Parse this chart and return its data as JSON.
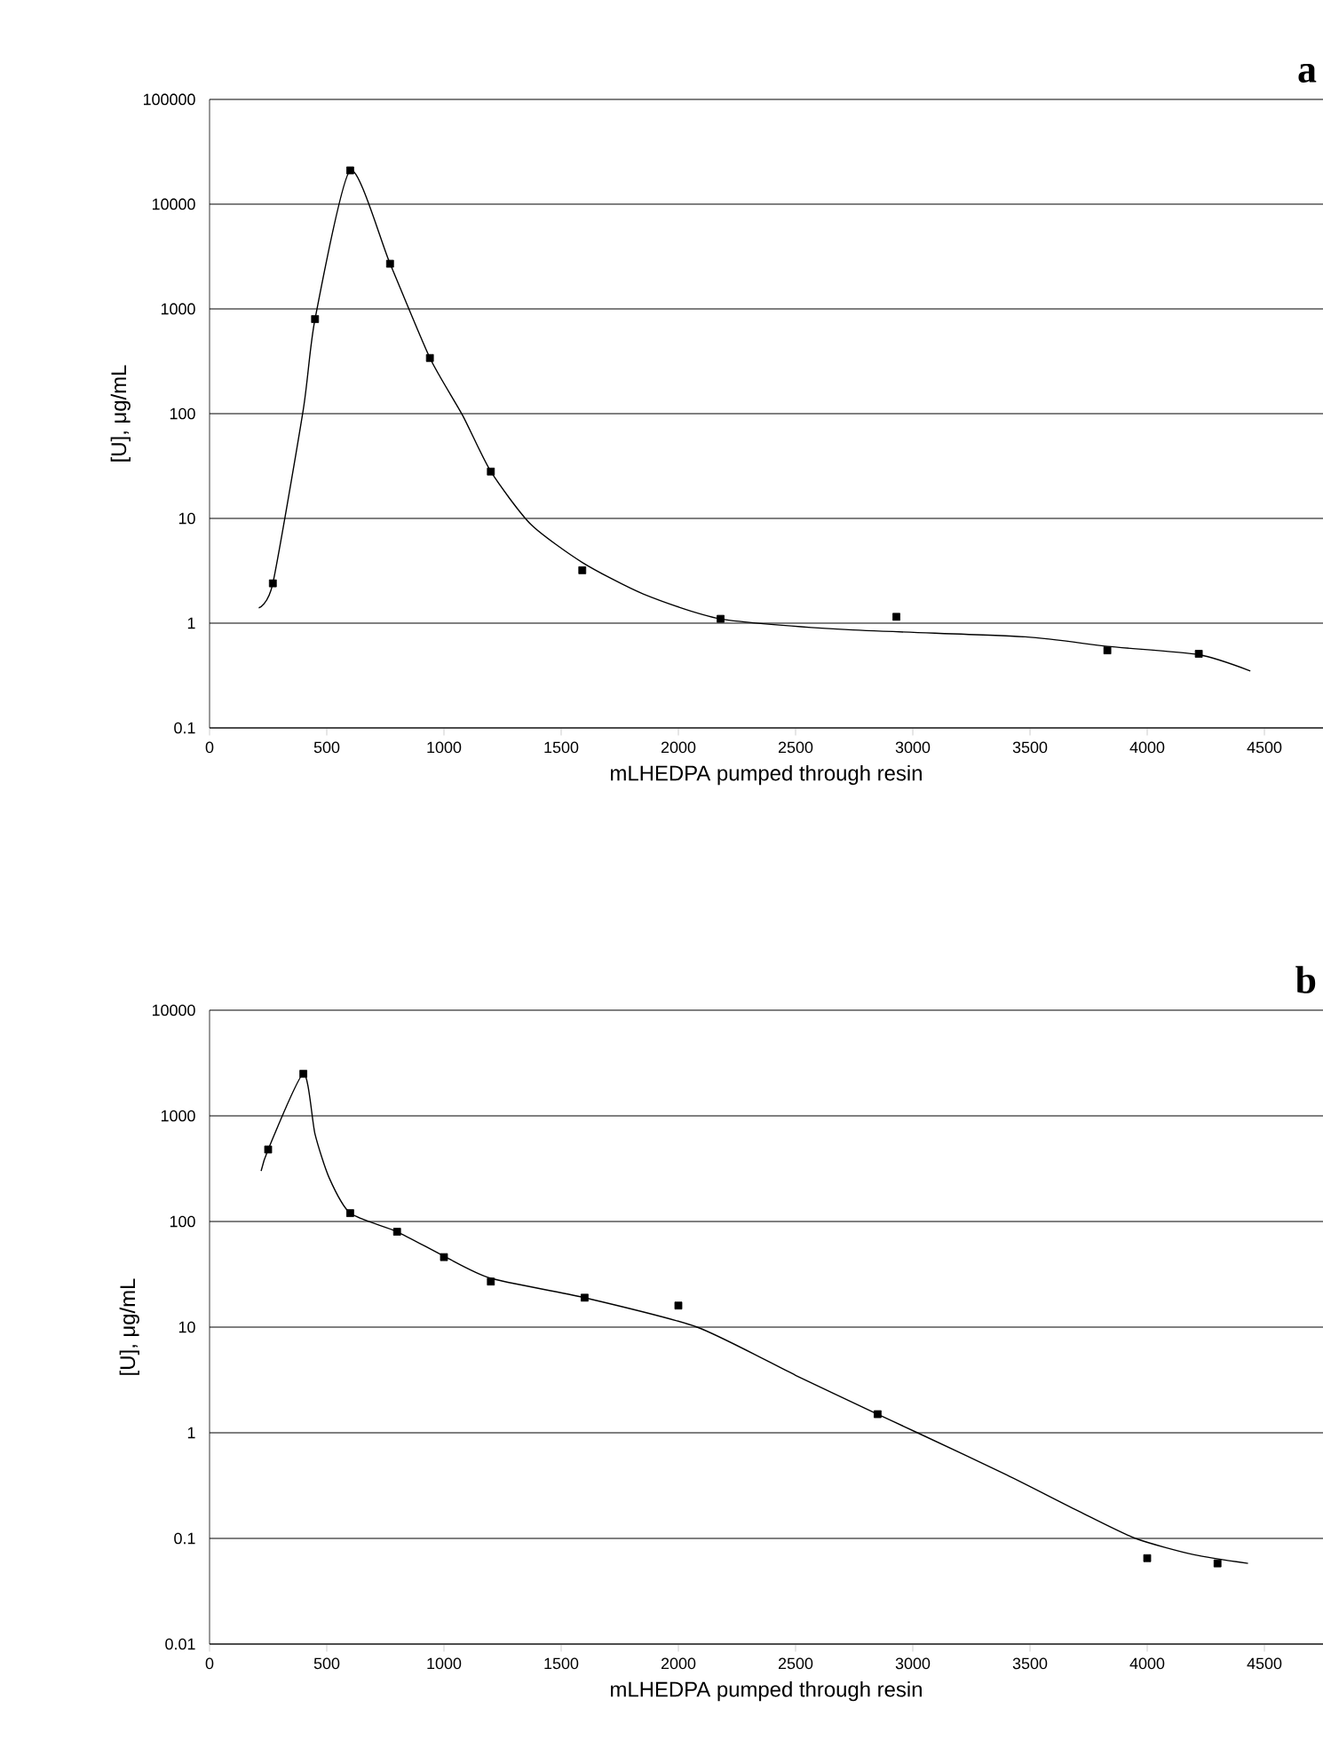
{
  "chart_data": [
    {
      "type": "scatter",
      "title": "a",
      "xlabel": "mLHEDPA pumped through resin",
      "ylabel": "[U], μg/mL",
      "log": "y",
      "grid": "y",
      "xlim": [
        0,
        4750
      ],
      "xticks": [
        0,
        500,
        1000,
        1500,
        2000,
        2500,
        3000,
        3500,
        4000,
        4500
      ],
      "ylim": [
        0.1,
        100000
      ],
      "yticks": [
        0.1,
        1,
        10,
        100,
        1000,
        10000,
        100000
      ],
      "series": [
        {
          "marker": "square",
          "color": "#000000",
          "x": [
            270,
            450,
            600,
            770,
            940,
            1200,
            1590,
            2180,
            2930,
            3830,
            4220
          ],
          "values": [
            2.4,
            800,
            21000,
            2700,
            340,
            28,
            3.2,
            1.1,
            1.15,
            0.55,
            0.51
          ]
        },
        {
          "type": "line",
          "marker": "none",
          "color": "#000000",
          "x": [
            210,
            270,
            400,
            450,
            600,
            770,
            940,
            1080,
            1200,
            1370,
            1590,
            1850,
            2180,
            2710,
            3480,
            3830,
            4220,
            4440
          ],
          "values": [
            1.4,
            2.4,
            110,
            800,
            21000,
            2700,
            340,
            96,
            28,
            8.8,
            3.8,
            1.9,
            1.1,
            0.87,
            0.74,
            0.6,
            0.5,
            0.35
          ]
        }
      ]
    },
    {
      "type": "scatter",
      "title": "b",
      "xlabel": "mLHEDPA pumped through resin",
      "ylabel": "[U], μg/mL",
      "log": "y",
      "grid": "y",
      "xlim": [
        0,
        4750
      ],
      "xticks": [
        0,
        500,
        1000,
        1500,
        2000,
        2500,
        3000,
        3500,
        4000,
        4500
      ],
      "ylim": [
        0.01,
        10000
      ],
      "yticks": [
        0.01,
        0.1,
        1,
        10,
        100,
        1000,
        10000
      ],
      "series": [
        {
          "marker": "square",
          "color": "#000000",
          "x": [
            250,
            400,
            600,
            800,
            1000,
            1200,
            1600,
            2000,
            2850,
            4000,
            4300
          ],
          "values": [
            480,
            2500,
            120,
            80,
            46,
            27,
            19,
            16,
            1.5,
            0.065,
            0.058
          ]
        },
        {
          "type": "line",
          "marker": "none",
          "color": "#000000",
          "x": [
            220,
            250,
            400,
            450,
            510,
            600,
            800,
            1000,
            1200,
            1600,
            2080,
            2500,
            2850,
            3020,
            3400,
            3710,
            3950,
            4200,
            4430
          ],
          "values": [
            300,
            480,
            2500,
            670,
            260,
            120,
            80,
            47,
            29,
            19,
            10,
            3.5,
            1.5,
            1.0,
            0.4,
            0.18,
            0.1,
            0.07,
            0.058
          ]
        }
      ]
    }
  ]
}
